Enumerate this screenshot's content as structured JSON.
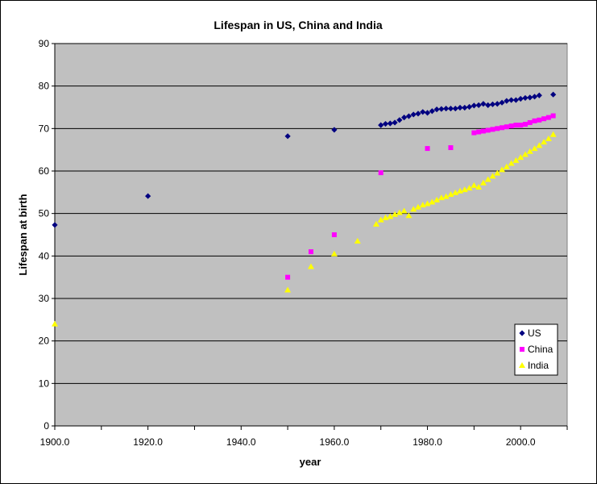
{
  "chart_data": {
    "type": "scatter",
    "title": "Lifespan in US, China and India",
    "xlabel": "year",
    "ylabel": "Lifespan at birth",
    "xlim": [
      1900,
      2010
    ],
    "ylim": [
      0,
      90
    ],
    "x_ticks": [
      "1900.0",
      "1920.0",
      "1940.0",
      "1960.0",
      "1980.0",
      "2000.0"
    ],
    "x_tick_values": [
      1900,
      1920,
      1940,
      1960,
      1980,
      2000
    ],
    "y_ticks": [
      "0",
      "10",
      "20",
      "30",
      "40",
      "50",
      "60",
      "70",
      "80",
      "90"
    ],
    "y_tick_values": [
      0,
      10,
      20,
      30,
      40,
      50,
      60,
      70,
      80,
      90
    ],
    "grid": "horizontal",
    "plot_background": "#c0c0c0",
    "legend_position": "bottom-right",
    "series": [
      {
        "name": "US",
        "marker": "diamond",
        "color": "#000080",
        "x": [
          1900,
          1920,
          1950,
          1960,
          1970,
          1971,
          1972,
          1973,
          1974,
          1975,
          1976,
          1977,
          1978,
          1979,
          1980,
          1981,
          1982,
          1983,
          1984,
          1985,
          1986,
          1987,
          1988,
          1989,
          1990,
          1991,
          1992,
          1993,
          1994,
          1995,
          1996,
          1997,
          1998,
          1999,
          2000,
          2001,
          2002,
          2003,
          2004,
          2007
        ],
        "y": [
          47.3,
          54.1,
          68.2,
          69.7,
          70.8,
          71.1,
          71.2,
          71.4,
          72.0,
          72.6,
          72.9,
          73.3,
          73.5,
          73.9,
          73.7,
          74.1,
          74.5,
          74.6,
          74.7,
          74.7,
          74.7,
          74.9,
          74.9,
          75.1,
          75.4,
          75.5,
          75.8,
          75.5,
          75.7,
          75.8,
          76.1,
          76.5,
          76.7,
          76.7,
          77.0,
          77.2,
          77.3,
          77.5,
          77.8,
          78.0
        ]
      },
      {
        "name": "China",
        "marker": "square",
        "color": "#ff00ff",
        "x": [
          1950,
          1955,
          1960,
          1970,
          1980,
          1985,
          1990,
          1991,
          1992,
          1993,
          1994,
          1995,
          1996,
          1997,
          1998,
          1999,
          2000,
          2001,
          2002,
          2003,
          2004,
          2005,
          2006,
          2007
        ],
        "y": [
          35.0,
          41.0,
          45.0,
          59.6,
          65.3,
          65.5,
          69.0,
          69.2,
          69.4,
          69.6,
          69.8,
          70.0,
          70.2,
          70.4,
          70.6,
          70.8,
          70.8,
          71.0,
          71.4,
          71.8,
          72.0,
          72.3,
          72.6,
          73.0
        ]
      },
      {
        "name": "India",
        "marker": "triangle",
        "color": "#ffff00",
        "x": [
          1900,
          1950,
          1955,
          1960,
          1965,
          1969,
          1970,
          1971,
          1972,
          1973,
          1974,
          1975,
          1976,
          1977,
          1978,
          1979,
          1980,
          1981,
          1982,
          1983,
          1984,
          1985,
          1986,
          1987,
          1988,
          1989,
          1990,
          1991,
          1992,
          1993,
          1994,
          1995,
          1996,
          1997,
          1998,
          1999,
          2000,
          2001,
          2002,
          2003,
          2004,
          2005,
          2006,
          2007
        ],
        "y": [
          24.0,
          32.0,
          37.5,
          40.5,
          43.5,
          47.5,
          48.5,
          49.0,
          49.3,
          49.8,
          50.2,
          50.6,
          49.5,
          51.0,
          51.5,
          52.0,
          52.3,
          52.7,
          53.2,
          53.7,
          54.0,
          54.5,
          54.9,
          55.3,
          55.6,
          56.0,
          56.6,
          56.2,
          57.2,
          58.0,
          58.8,
          59.5,
          60.3,
          61.0,
          61.8,
          62.5,
          63.2,
          63.9,
          64.6,
          65.3,
          66.0,
          66.8,
          67.6,
          68.6
        ]
      }
    ]
  }
}
